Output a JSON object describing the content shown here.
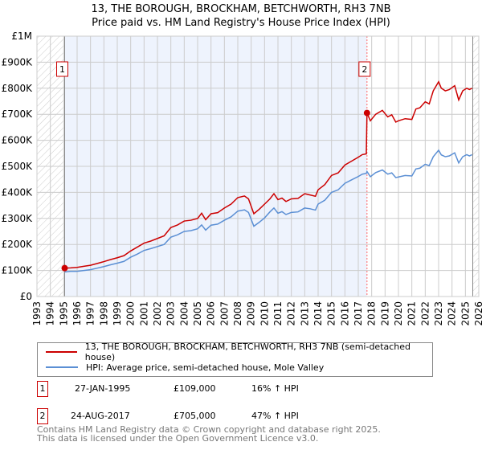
{
  "chart_data": {
    "type": "line",
    "title": "13, THE BOROUGH, BROCKHAM, BETCHWORTH, RH3 7NB",
    "subtitle": "Price paid vs. HM Land Registry's House Price Index (HPI)",
    "xlim": [
      1993,
      2026
    ],
    "ylim": [
      0,
      1000000
    ],
    "x_ticks": [
      "1993",
      "1994",
      "1995",
      "1996",
      "1997",
      "1998",
      "1999",
      "2000",
      "2001",
      "2002",
      "2003",
      "2004",
      "2005",
      "2006",
      "2007",
      "2008",
      "2009",
      "2010",
      "2011",
      "2012",
      "2013",
      "2014",
      "2015",
      "2016",
      "2017",
      "2018",
      "2019",
      "2020",
      "2021",
      "2022",
      "2023",
      "2024",
      "2025",
      "2026"
    ],
    "y_ticks": [
      {
        "v": 0,
        "l": "£0"
      },
      {
        "v": 100000,
        "l": "£100K"
      },
      {
        "v": 200000,
        "l": "£200K"
      },
      {
        "v": 300000,
        "l": "£300K"
      },
      {
        "v": 400000,
        "l": "£400K"
      },
      {
        "v": 500000,
        "l": "£500K"
      },
      {
        "v": 600000,
        "l": "£600K"
      },
      {
        "v": 700000,
        "l": "£700K"
      },
      {
        "v": 800000,
        "l": "£800K"
      },
      {
        "v": 900000,
        "l": "£900K"
      },
      {
        "v": 1000000,
        "l": "£1M"
      }
    ],
    "grid": true,
    "series": [
      {
        "name": "13, THE BOROUGH, BROCKHAM, BETCHWORTH, RH3 7NB (semi-detached house)",
        "color": "#cc0000",
        "x": [
          1995.07,
          1995.5,
          1996,
          1996.5,
          1997,
          1997.5,
          1998,
          1998.5,
          1999,
          1999.5,
          2000,
          2000.5,
          2001,
          2001.5,
          2002,
          2002.5,
          2003,
          2003.5,
          2004,
          2004.5,
          2005,
          2005.3,
          2005.6,
          2006,
          2006.5,
          2007,
          2007.5,
          2008,
          2008.5,
          2008.8,
          2009.2,
          2009.6,
          2010,
          2010.4,
          2010.7,
          2011,
          2011.3,
          2011.6,
          2012,
          2012.5,
          2013,
          2013.4,
          2013.8,
          2014,
          2014.5,
          2015,
          2015.5,
          2016,
          2016.5,
          2017,
          2017.3,
          2017.6,
          2017.65,
          2017.9,
          2018.3,
          2018.8,
          2019.2,
          2019.5,
          2019.8,
          2020,
          2020.5,
          2021,
          2021.3,
          2021.6,
          2022,
          2022.3,
          2022.6,
          2023,
          2023.2,
          2023.5,
          2023.8,
          2024.2,
          2024.5,
          2024.8,
          2025.1,
          2025.3,
          2025.5
        ],
        "y": [
          109000,
          110000,
          112000,
          116000,
          120000,
          127000,
          134000,
          142000,
          149000,
          157000,
          175000,
          190000,
          205000,
          213000,
          223000,
          233000,
          265000,
          275000,
          290000,
          293000,
          300000,
          320000,
          295000,
          318000,
          322000,
          340000,
          355000,
          380000,
          386000,
          375000,
          318000,
          335000,
          355000,
          375000,
          395000,
          372000,
          378000,
          365000,
          375000,
          377000,
          395000,
          390000,
          385000,
          410000,
          430000,
          465000,
          475000,
          505000,
          520000,
          535000,
          545000,
          548000,
          705000,
          675000,
          700000,
          715000,
          690000,
          698000,
          670000,
          675000,
          683000,
          680000,
          720000,
          725000,
          748000,
          740000,
          790000,
          825000,
          800000,
          790000,
          795000,
          810000,
          755000,
          790000,
          800000,
          795000,
          800000
        ]
      },
      {
        "name": "HPI: Average price, semi-detached house, Mole Valley",
        "color": "#5b8fd4",
        "x": [
          1995.07,
          1995.5,
          1996,
          1996.5,
          1997,
          1997.5,
          1998,
          1998.5,
          1999,
          1999.5,
          2000,
          2000.5,
          2001,
          2001.5,
          2002,
          2002.5,
          2003,
          2003.5,
          2004,
          2004.5,
          2005,
          2005.3,
          2005.6,
          2006,
          2006.5,
          2007,
          2007.5,
          2008,
          2008.5,
          2008.8,
          2009.2,
          2009.6,
          2010,
          2010.4,
          2010.7,
          2011,
          2011.3,
          2011.6,
          2012,
          2012.5,
          2013,
          2013.4,
          2013.8,
          2014,
          2014.5,
          2015,
          2015.5,
          2016,
          2016.5,
          2017,
          2017.3,
          2017.6,
          2017.65,
          2017.9,
          2018.3,
          2018.8,
          2019.2,
          2019.5,
          2019.8,
          2020,
          2020.5,
          2021,
          2021.3,
          2021.6,
          2022,
          2022.3,
          2022.6,
          2023,
          2023.2,
          2023.5,
          2023.8,
          2024.2,
          2024.5,
          2024.8,
          2025.1,
          2025.3,
          2025.5
        ],
        "y": [
          94000,
          97000,
          97000,
          100000,
          103000,
          109000,
          115000,
          122000,
          128000,
          135000,
          151000,
          163000,
          177000,
          184000,
          192000,
          200000,
          228000,
          237000,
          250000,
          253000,
          260000,
          275000,
          255000,
          274000,
          278000,
          293000,
          306000,
          328000,
          333000,
          323000,
          270000,
          285000,
          302000,
          325000,
          340000,
          320000,
          326000,
          315000,
          323000,
          325000,
          340000,
          337000,
          332000,
          355000,
          370000,
          400000,
          410000,
          435000,
          448000,
          461000,
          470000,
          473000,
          480000,
          460000,
          476000,
          486000,
          470000,
          475000,
          457000,
          459000,
          465000,
          463000,
          490000,
          493000,
          508000,
          503000,
          537000,
          562000,
          544000,
          537000,
          540000,
          552000,
          513000,
          537000,
          545000,
          540000,
          545000
        ]
      }
    ],
    "markers": [
      {
        "label": "1",
        "x": 1995.07,
        "y": 109000
      },
      {
        "label": "2",
        "x": 2017.65,
        "y": 705000
      }
    ]
  },
  "legend": [
    "13, THE BOROUGH, BROCKHAM, BETCHWORTH, RH3 7NB (semi-detached house)",
    "HPI: Average price, semi-detached house, Mole Valley"
  ],
  "sales": [
    {
      "num": "1",
      "date": "27-JAN-1995",
      "price": "£109,000",
      "hpi": "16% ↑ HPI"
    },
    {
      "num": "2",
      "date": "24-AUG-2017",
      "price": "£705,000",
      "hpi": "47% ↑ HPI"
    }
  ],
  "footer": [
    "Contains HM Land Registry data © Crown copyright and database right 2025.",
    "This data is licensed under the Open Government Licence v3.0."
  ],
  "colors": {
    "property": "#cc0000",
    "hpi": "#5b8fd4",
    "shade": "#eef3fd"
  }
}
